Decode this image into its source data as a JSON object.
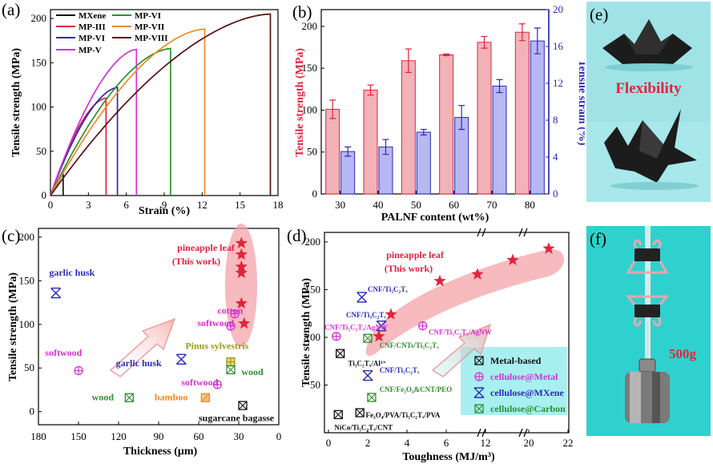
{
  "panel_labels": {
    "a": "(a)",
    "b": "(b)",
    "c": "(c)",
    "d": "(d)",
    "e": "(e)",
    "f": "(f)"
  },
  "photo_text": {
    "flexibility": "Flexibility",
    "weight": "500g"
  },
  "colors": {
    "red": "#e2233c",
    "blue": "#2b2bb8",
    "green": "#2f8f2f",
    "magenta": "#d433d4",
    "olive": "#9a9a1a",
    "orange": "#f08a24",
    "black": "#111111",
    "pink": "#f4a3a8",
    "bar_red": "#f1b3b7",
    "bar_blue": "#b7b7f3"
  },
  "chart_data": [
    {
      "id": "a",
      "type": "line",
      "xlabel": "Strain (%)",
      "ylabel": "Tensile strength (MPa)",
      "xlim": [
        0,
        18
      ],
      "ylim": [
        0,
        210
      ],
      "xticks": [
        "0",
        "3",
        "6",
        "9",
        "12",
        "15",
        "18"
      ],
      "yticks": [
        "0",
        "50",
        "100",
        "150",
        "200"
      ],
      "legend": [
        "MXene",
        "MP-III",
        "MP-VI",
        "MP-V",
        "MP-VI",
        "MP-VII",
        "MP-VIII"
      ],
      "series": [
        {
          "name": "MXene",
          "color": "#111111",
          "break_x": 1.0,
          "peak": 25
        },
        {
          "name": "MP-III",
          "color": "#e2233c",
          "break_x": 4.4,
          "peak": 110
        },
        {
          "name": "MP-VI",
          "color": "#2b2bb8",
          "break_x": 5.3,
          "peak": 122
        },
        {
          "name": "MP-V",
          "color": "#d433d4",
          "break_x": 6.8,
          "peak": 165
        },
        {
          "name": "MP-VI",
          "color": "#2f8f2f",
          "break_x": 9.5,
          "peak": 166
        },
        {
          "name": "MP-VII",
          "color": "#f08a24",
          "break_x": 12.2,
          "peak": 188
        },
        {
          "name": "MP-VIII",
          "color": "#5a1010",
          "break_x": 17.4,
          "peak": 205
        }
      ]
    },
    {
      "id": "b",
      "type": "bar",
      "xlabel": "PALNF content (wt%)",
      "ylabel": "Tensile strength (MPa)",
      "y2label": "Tensile strain (%)",
      "categories": [
        "30",
        "40",
        "50",
        "60",
        "70",
        "80"
      ],
      "yticks": [
        "0",
        "50",
        "100",
        "150",
        "200"
      ],
      "y2ticks": [
        "0",
        "4",
        "8",
        "12",
        "16",
        "20"
      ],
      "ylim": [
        0,
        220
      ],
      "y2lim": [
        0,
        20
      ],
      "series": [
        {
          "name": "Tensile strength",
          "axis": "left",
          "values": [
            101,
            124,
            159,
            166,
            181,
            193
          ],
          "errors": [
            11,
            6,
            14,
            1,
            7,
            10
          ]
        },
        {
          "name": "Tensile strain",
          "axis": "right",
          "values": [
            4.6,
            5.1,
            6.7,
            8.3,
            11.7,
            16.6
          ],
          "errors": [
            0.5,
            0.8,
            0.3,
            1.3,
            0.7,
            1.4
          ]
        }
      ]
    },
    {
      "id": "c",
      "type": "scatter",
      "xlabel": "Thickness (μm)",
      "ylabel": "Tensile strength (MPa)",
      "xlim": [
        180,
        0
      ],
      "ylim": [
        -15,
        210
      ],
      "xticks": [
        "180",
        "150",
        "120",
        "90",
        "60",
        "30",
        "0"
      ],
      "yticks": [
        "0",
        "50",
        "100",
        "150",
        "200"
      ],
      "highlight": {
        "label": "pineapple leaf",
        "sublabel": "(This work)"
      },
      "points": [
        {
          "x": 28,
          "y": 193,
          "type": "star"
        },
        {
          "x": 28,
          "y": 180,
          "type": "star"
        },
        {
          "x": 28,
          "y": 166,
          "type": "star"
        },
        {
          "x": 28,
          "y": 159,
          "type": "star"
        },
        {
          "x": 28,
          "y": 124,
          "type": "star"
        },
        {
          "x": 26,
          "y": 101,
          "type": "star"
        },
        {
          "x": 167,
          "y": 136,
          "type": "mxene"
        },
        {
          "x": 73,
          "y": 60,
          "type": "mxene"
        },
        {
          "x": 33,
          "y": 112,
          "type": "metal"
        },
        {
          "x": 36,
          "y": 98,
          "type": "metal"
        },
        {
          "x": 150,
          "y": 47,
          "type": "metal"
        },
        {
          "x": 46,
          "y": 31,
          "type": "metal"
        },
        {
          "x": 36,
          "y": 57,
          "type": "olive"
        },
        {
          "x": 36,
          "y": 48,
          "type": "carbon"
        },
        {
          "x": 112,
          "y": 16,
          "type": "carbon"
        },
        {
          "x": 55,
          "y": 16,
          "type": "bamboo"
        },
        {
          "x": 27,
          "y": 7,
          "type": "black"
        }
      ],
      "labels": [
        {
          "text": "garlic husk",
          "x": 172,
          "y": 156,
          "color": "blue"
        },
        {
          "text": "cotton",
          "x": 46,
          "y": 112,
          "color": "magenta"
        },
        {
          "text": "softwood",
          "x": 61,
          "y": 98,
          "color": "magenta"
        },
        {
          "text": "softwood",
          "x": 175,
          "y": 64,
          "color": "magenta"
        },
        {
          "text": "garlic husk",
          "x": 122,
          "y": 52,
          "color": "blue"
        },
        {
          "text": "Pinus sylvestris",
          "x": 70,
          "y": 72,
          "color": "olive"
        },
        {
          "text": "wood",
          "x": 28,
          "y": 42,
          "color": "green"
        },
        {
          "text": "softwood",
          "x": 73,
          "y": 30,
          "color": "magenta"
        },
        {
          "text": "wood",
          "x": 140,
          "y": 13,
          "color": "green"
        },
        {
          "text": "bamboo",
          "x": 93,
          "y": 13,
          "color": "orange"
        },
        {
          "text": "sugarcane bagasse",
          "x": 60,
          "y": -11,
          "color": "black"
        }
      ]
    },
    {
      "id": "d",
      "type": "scatter",
      "xlabel": "Toughness (MJ/m³)",
      "ylabel": "Tensile strength (MPa)",
      "xticks": [
        "0",
        "2",
        "4",
        "6",
        "8",
        "10",
        "12",
        "16",
        "20",
        "22"
      ],
      "yticks": [
        "50",
        "100",
        "150",
        "200"
      ],
      "ylim": [
        0,
        210
      ],
      "highlight": {
        "label": "pineapple leaf",
        "sublabel": "(This work)"
      },
      "legend": [
        "Metal-based",
        "cellulose@Metal",
        "cellulose@MXene",
        "cellulose@Carbon"
      ],
      "points": [
        {
          "x": 2.6,
          "y": 101,
          "type": "star"
        },
        {
          "x": 3.2,
          "y": 124,
          "type": "star"
        },
        {
          "x": 5.8,
          "y": 159,
          "type": "star"
        },
        {
          "x": 7.6,
          "y": 166,
          "type": "star"
        },
        {
          "x": 9.4,
          "y": 181,
          "type": "star"
        },
        {
          "x": 11.2,
          "y": 193,
          "type": "star"
        },
        {
          "x": 1.7,
          "y": 142,
          "type": "mxene"
        },
        {
          "x": 2.7,
          "y": 112,
          "type": "mxene"
        },
        {
          "x": 2.0,
          "y": 60,
          "type": "mxene"
        },
        {
          "x": 0.4,
          "y": 101,
          "type": "metal"
        },
        {
          "x": 4.8,
          "y": 112,
          "type": "metal"
        },
        {
          "x": 0.6,
          "y": 83,
          "type": "black"
        },
        {
          "x": 1.6,
          "y": 21,
          "type": "black"
        },
        {
          "x": 0.5,
          "y": 19,
          "type": "black"
        },
        {
          "x": 2.0,
          "y": 99,
          "type": "carbon"
        },
        {
          "x": 2.2,
          "y": 37,
          "type": "carbon"
        }
      ],
      "labels": [
        {
          "text": "CNF/Ti₃C₂Tₓ",
          "x": 2.0,
          "y": 148,
          "color": "blue"
        },
        {
          "text": "CNF/Ti₃C₂Tₓ",
          "x": 0.9,
          "y": 121,
          "color": "blue"
        },
        {
          "text": "CNF/Ti₃C₂Tₓ/AgNW",
          "x": -0.2,
          "y": 108,
          "color": "magenta"
        },
        {
          "text": "CNF/Ti₃C₂Tₓ/AgNW",
          "x": 5.1,
          "y": 103,
          "color": "magenta"
        },
        {
          "text": "CNF/CNTs/Ti₃C₂Tₓ",
          "x": 2.6,
          "y": 89,
          "color": "green"
        },
        {
          "text": "Ti₃C₂Tₓ/Al³⁺",
          "x": 1.0,
          "y": 70,
          "color": "black"
        },
        {
          "text": "CNF/Ti₃C₂Tₓ",
          "x": 2.6,
          "y": 63,
          "color": "blue"
        },
        {
          "text": "CNF/Fe₃O₄&CNT/PEO",
          "x": 2.6,
          "y": 43,
          "color": "green"
        },
        {
          "text": "Fe₃O₄/PVA/Ti₃C₂Tₓ/PVA",
          "x": 1.9,
          "y": 16,
          "color": "black"
        },
        {
          "text": "NiCo/Ti₃C₂Tₓ/CNT",
          "x": 0.3,
          "y": 3,
          "color": "black"
        }
      ]
    }
  ]
}
